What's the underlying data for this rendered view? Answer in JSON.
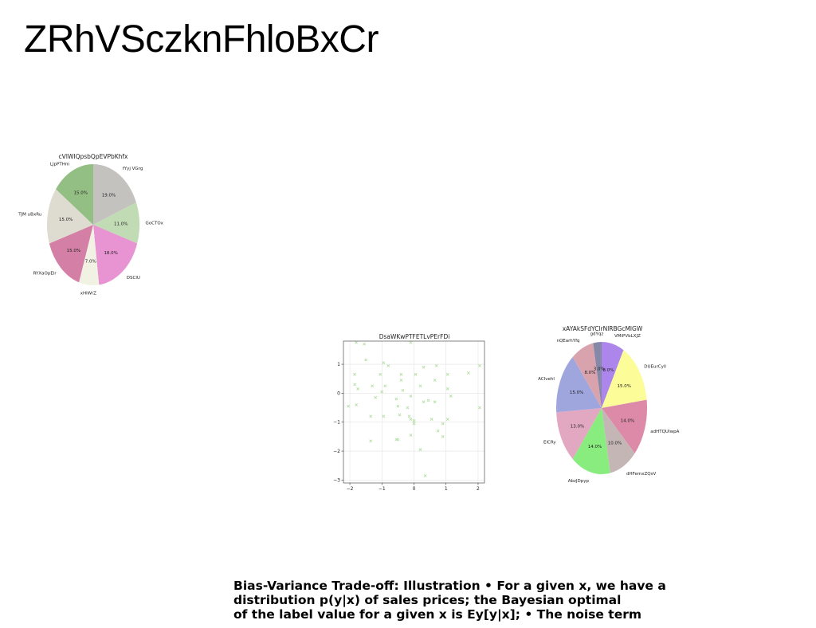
{
  "page": {
    "title": "ZRhVSczknFhloBxCr",
    "caption": [
      "Bias-Variance Trade-off: Illustration • For a given x, we have a",
      "distribution p(y|x) of sales prices; the Bayesian optimal",
      "of the label value for a given x is Ey[y|x]; • The noise term"
    ]
  },
  "chart_data": [
    {
      "type": "pie",
      "title": "cVIWIQpsbQpEVPbKhfx",
      "labels": [
        "fYyj VGrg",
        "GoCTOx",
        "DSClU",
        "xHlWrZ",
        "RYXaOpElr",
        "TJM uBxRu",
        "LJpPTHm"
      ],
      "values": [
        19,
        11,
        18,
        7,
        15,
        15,
        15
      ],
      "pct_labels": [
        "19.0%",
        "11.0%",
        "18.0%",
        "7.0%",
        "15.0%",
        "15.0%",
        "15.0%"
      ],
      "colors": [
        "#c4c2bf",
        "#c1dbb4",
        "#e893d2",
        "#f1f1e4",
        "#d37fa6",
        "#dedbd0",
        "#94bf84"
      ]
    },
    {
      "type": "scatter",
      "title": "DsaWKwPTFETLvPErFDi",
      "marker": "x",
      "color": "#b5dfa5",
      "xlim": [
        -2.2,
        2.2
      ],
      "ylim": [
        -3.1,
        1.8
      ],
      "xticks": [
        "−2",
        "−1",
        "0",
        "1",
        "2"
      ],
      "xtick_values": [
        -2,
        -1,
        0,
        1,
        2
      ],
      "yticks": [
        "1",
        "0",
        "−1",
        "−2",
        "−3"
      ],
      "ytick_values": [
        1,
        0,
        -1,
        -2,
        -3
      ],
      "grid": true,
      "points": [
        [
          -1.8,
          1.75
        ],
        [
          -1.55,
          1.7
        ],
        [
          -0.1,
          1.75
        ],
        [
          -1.5,
          1.15
        ],
        [
          -0.95,
          1.05
        ],
        [
          -0.8,
          0.95
        ],
        [
          0.3,
          0.9
        ],
        [
          0.7,
          0.95
        ],
        [
          1.7,
          0.7
        ],
        [
          2.05,
          0.95
        ],
        [
          -1.85,
          0.65
        ],
        [
          -1.05,
          0.65
        ],
        [
          -0.4,
          0.65
        ],
        [
          0.05,
          0.65
        ],
        [
          1.05,
          0.65
        ],
        [
          -1.85,
          0.3
        ],
        [
          -1.3,
          0.25
        ],
        [
          -0.9,
          0.25
        ],
        [
          -0.4,
          0.45
        ],
        [
          0.65,
          0.45
        ],
        [
          -1.75,
          0.15
        ],
        [
          -1.0,
          0.05
        ],
        [
          -0.35,
          0.1
        ],
        [
          0.2,
          0.25
        ],
        [
          1.05,
          0.15
        ],
        [
          -1.2,
          -0.15
        ],
        [
          -0.55,
          -0.2
        ],
        [
          -0.1,
          -0.1
        ],
        [
          0.45,
          -0.25
        ],
        [
          1.15,
          -0.1
        ],
        [
          -2.05,
          -0.45
        ],
        [
          -1.8,
          -0.4
        ],
        [
          -0.5,
          -0.45
        ],
        [
          -0.2,
          -0.5
        ],
        [
          0.3,
          -0.3
        ],
        [
          0.65,
          -0.3
        ],
        [
          2.05,
          -0.5
        ],
        [
          -1.35,
          -0.8
        ],
        [
          -0.95,
          -0.8
        ],
        [
          -0.45,
          -0.75
        ],
        [
          -0.15,
          -0.8
        ],
        [
          -0.1,
          -0.9
        ],
        [
          0.0,
          -0.95
        ],
        [
          0.55,
          -0.9
        ],
        [
          1.05,
          -0.9
        ],
        [
          0.0,
          -1.05
        ],
        [
          0.9,
          -1.05
        ],
        [
          0.75,
          -1.3
        ],
        [
          -0.5,
          -1.6
        ],
        [
          -0.1,
          -1.45
        ],
        [
          0.9,
          -1.5
        ],
        [
          -1.35,
          -1.65
        ],
        [
          -0.55,
          -1.6
        ],
        [
          0.2,
          -1.95
        ],
        [
          0.35,
          -2.85
        ]
      ]
    },
    {
      "type": "pie",
      "title": "xAYAkSFdYClrNlRBGcMlGW",
      "labels": [
        "VMiPVbLXJZ",
        "DUEurCyll",
        "adHTQUIwpA",
        "dHFemxZQsV",
        "AbzJDpyp",
        "ElCRy",
        "ACIvehl",
        "nQEarhYfq",
        "gdYqz"
      ],
      "values": [
        8,
        15,
        14,
        10,
        14,
        13,
        15,
        8,
        3
      ],
      "pct_labels": [
        "8.0%",
        "15.0%",
        "14.0%",
        "10.0%",
        "14.0%",
        "13.0%",
        "15.0%",
        "8.0%",
        "3.0%"
      ],
      "colors": [
        "#ac86ea",
        "#fcfc99",
        "#dd8aa8",
        "#c5b6b6",
        "#89ec7f",
        "#e2a8c2",
        "#9fa6de",
        "#d9a3ae",
        "#8588a6"
      ]
    }
  ]
}
